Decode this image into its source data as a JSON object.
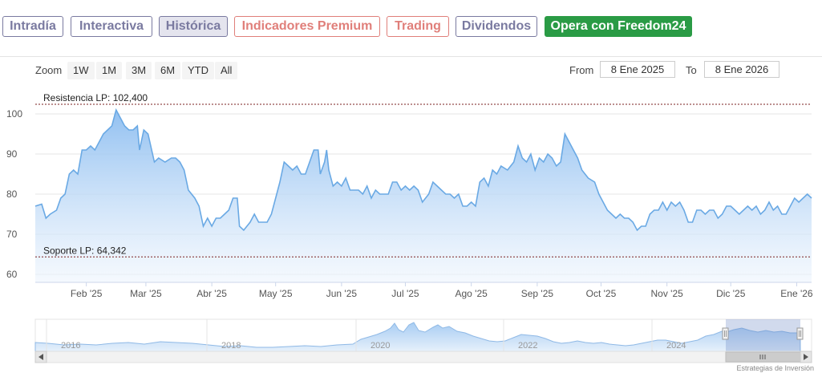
{
  "nav": {
    "tabs": [
      {
        "label": "Intradía",
        "color": "#7a7aa0"
      },
      {
        "label": "Interactiva",
        "color": "#7a7aa0"
      },
      {
        "label": "Histórica",
        "color": "#7a7aa0",
        "active": true
      },
      {
        "label": "Indicadores Premium",
        "color": "#e07f7a"
      },
      {
        "label": "Trading",
        "color": "#e07f7a"
      },
      {
        "label": "Dividendos",
        "color": "#7a7aa0"
      },
      {
        "label": "Opera con Freedom24",
        "color": "#2a9b45",
        "cta": true
      }
    ]
  },
  "range_selector": {
    "zoom_label": "Zoom",
    "buttons": [
      "1W",
      "1M",
      "3M",
      "6M",
      "YTD",
      "All"
    ],
    "from_label": "From",
    "from_value": "8 Ene 2025",
    "to_label": "To",
    "to_value": "8 Ene 2026"
  },
  "chart_data": {
    "type": "area",
    "ylim": [
      58,
      104
    ],
    "yticks": [
      60,
      70,
      80,
      90,
      100
    ],
    "xlim": [
      0,
      365
    ],
    "x_ticks": [
      {
        "label": "Feb '25",
        "day": 24
      },
      {
        "label": "Mar '25",
        "day": 52
      },
      {
        "label": "Abr '25",
        "day": 83
      },
      {
        "label": "May '25",
        "day": 113
      },
      {
        "label": "Jun '25",
        "day": 144
      },
      {
        "label": "Jul '25",
        "day": 174
      },
      {
        "label": "Ago '25",
        "day": 205
      },
      {
        "label": "Sep '25",
        "day": 236
      },
      {
        "label": "Oct '25",
        "day": 266
      },
      {
        "label": "Nov '25",
        "day": 297
      },
      {
        "label": "Dic '25",
        "day": 327
      },
      {
        "label": "Ene '26",
        "day": 358
      }
    ],
    "lines": [
      {
        "label": "Resistencia LP: 102,400",
        "value": 102.4
      },
      {
        "label": "Soporte LP: 64,342",
        "value": 64.342
      }
    ],
    "series": [
      {
        "points": [
          [
            0,
            77
          ],
          [
            3,
            77.5
          ],
          [
            5,
            74
          ],
          [
            7,
            75
          ],
          [
            10,
            76
          ],
          [
            12,
            79
          ],
          [
            14,
            80
          ],
          [
            16,
            85
          ],
          [
            18,
            86
          ],
          [
            20,
            85
          ],
          [
            22,
            91
          ],
          [
            24,
            91
          ],
          [
            26,
            92
          ],
          [
            28,
            91
          ],
          [
            30,
            93
          ],
          [
            32,
            95
          ],
          [
            34,
            96
          ],
          [
            36,
            97
          ],
          [
            38,
            101
          ],
          [
            40,
            99
          ],
          [
            42,
            97
          ],
          [
            44,
            96
          ],
          [
            46,
            96
          ],
          [
            48,
            97
          ],
          [
            49,
            91
          ],
          [
            51,
            96
          ],
          [
            53,
            95
          ],
          [
            56,
            88
          ],
          [
            58,
            89
          ],
          [
            61,
            88
          ],
          [
            64,
            89
          ],
          [
            66,
            89
          ],
          [
            68,
            88
          ],
          [
            70,
            86
          ],
          [
            72,
            81
          ],
          [
            75,
            79
          ],
          [
            77,
            77
          ],
          [
            79,
            72
          ],
          [
            81,
            74
          ],
          [
            83,
            72
          ],
          [
            85,
            74
          ],
          [
            87,
            74
          ],
          [
            89,
            75
          ],
          [
            91,
            76
          ],
          [
            93,
            79
          ],
          [
            95,
            79
          ],
          [
            96,
            72
          ],
          [
            98,
            71
          ],
          [
            101,
            73
          ],
          [
            103,
            75
          ],
          [
            105,
            73
          ],
          [
            107,
            73
          ],
          [
            109,
            73
          ],
          [
            111,
            75
          ],
          [
            113,
            79
          ],
          [
            115,
            83
          ],
          [
            117,
            88
          ],
          [
            119,
            87
          ],
          [
            121,
            86
          ],
          [
            123,
            87
          ],
          [
            125,
            85
          ],
          [
            127,
            85
          ],
          [
            129,
            88
          ],
          [
            131,
            91
          ],
          [
            133,
            91
          ],
          [
            134,
            85
          ],
          [
            136,
            88
          ],
          [
            137,
            91
          ],
          [
            138,
            86
          ],
          [
            140,
            82
          ],
          [
            142,
            83
          ],
          [
            144,
            82
          ],
          [
            146,
            84
          ],
          [
            148,
            81
          ],
          [
            150,
            81
          ],
          [
            152,
            81
          ],
          [
            154,
            80
          ],
          [
            156,
            82
          ],
          [
            158,
            79
          ],
          [
            160,
            81
          ],
          [
            162,
            80
          ],
          [
            164,
            80
          ],
          [
            166,
            80
          ],
          [
            168,
            83
          ],
          [
            170,
            83
          ],
          [
            172,
            81
          ],
          [
            174,
            82
          ],
          [
            176,
            81
          ],
          [
            178,
            82
          ],
          [
            180,
            81
          ],
          [
            182,
            78
          ],
          [
            185,
            80
          ],
          [
            187,
            83
          ],
          [
            189,
            82
          ],
          [
            191,
            81
          ],
          [
            193,
            80
          ],
          [
            195,
            80
          ],
          [
            197,
            79
          ],
          [
            199,
            80
          ],
          [
            201,
            77
          ],
          [
            203,
            77
          ],
          [
            205,
            78
          ],
          [
            207,
            77
          ],
          [
            209,
            83
          ],
          [
            211,
            84
          ],
          [
            213,
            82
          ],
          [
            215,
            86
          ],
          [
            217,
            85
          ],
          [
            219,
            87
          ],
          [
            222,
            86
          ],
          [
            225,
            88
          ],
          [
            227,
            92
          ],
          [
            229,
            89
          ],
          [
            231,
            88
          ],
          [
            233,
            90
          ],
          [
            235,
            86
          ],
          [
            237,
            89
          ],
          [
            239,
            88
          ],
          [
            241,
            90
          ],
          [
            243,
            89
          ],
          [
            245,
            87
          ],
          [
            247,
            88
          ],
          [
            249,
            95
          ],
          [
            251,
            93
          ],
          [
            253,
            91
          ],
          [
            255,
            89
          ],
          [
            257,
            86
          ],
          [
            260,
            84
          ],
          [
            263,
            83
          ],
          [
            265,
            80
          ],
          [
            267,
            78
          ],
          [
            269,
            76
          ],
          [
            271,
            75
          ],
          [
            273,
            74
          ],
          [
            275,
            75
          ],
          [
            277,
            74
          ],
          [
            279,
            74
          ],
          [
            281,
            73
          ],
          [
            283,
            71
          ],
          [
            285,
            72
          ],
          [
            287,
            72
          ],
          [
            289,
            75
          ],
          [
            291,
            76
          ],
          [
            293,
            76
          ],
          [
            295,
            78
          ],
          [
            297,
            76
          ],
          [
            299,
            78
          ],
          [
            301,
            77
          ],
          [
            303,
            78
          ],
          [
            305,
            76
          ],
          [
            307,
            73
          ],
          [
            309,
            73
          ],
          [
            311,
            76
          ],
          [
            313,
            76
          ],
          [
            315,
            75
          ],
          [
            317,
            76
          ],
          [
            319,
            76
          ],
          [
            321,
            74
          ],
          [
            323,
            75
          ],
          [
            325,
            77
          ],
          [
            327,
            77
          ],
          [
            329,
            76
          ],
          [
            331,
            75
          ],
          [
            333,
            76
          ],
          [
            335,
            77
          ],
          [
            337,
            76
          ],
          [
            339,
            77
          ],
          [
            341,
            75
          ],
          [
            343,
            76
          ],
          [
            345,
            78
          ],
          [
            347,
            76
          ],
          [
            349,
            77
          ],
          [
            351,
            75
          ],
          [
            353,
            75
          ],
          [
            355,
            77
          ],
          [
            357,
            79
          ],
          [
            359,
            78
          ],
          [
            361,
            79
          ],
          [
            363,
            80
          ],
          [
            365,
            79
          ]
        ]
      }
    ]
  },
  "navigator": {
    "year_labels": [
      "2016",
      "2018",
      "2020",
      "2022",
      "2024"
    ]
  },
  "credit": "Estrategias de Inversión"
}
